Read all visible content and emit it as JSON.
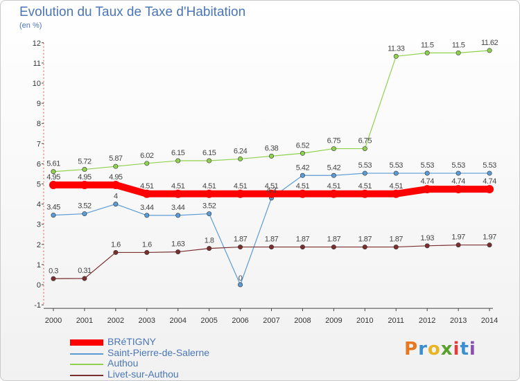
{
  "header": {
    "title": "Evolution du Taux de Taxe d'Habitation",
    "subtitle": "(en %)"
  },
  "logo": {
    "text": "Proxiti",
    "colors": [
      "#e87722",
      "#3a8fd0",
      "#e8b422",
      "#5aa02c",
      "#e03c3c",
      "#3a8fd0",
      "#8a4fb5"
    ]
  },
  "chart_data": {
    "type": "line",
    "x": [
      "2000",
      "2001",
      "2002",
      "2003",
      "2004",
      "2005",
      "2006",
      "2007",
      "2008",
      "2009",
      "2010",
      "2011",
      "2012",
      "2013",
      "2014"
    ],
    "ylim": [
      -1,
      12
    ],
    "yticks": [
      -1,
      0,
      1,
      2,
      3,
      4,
      5,
      6,
      7,
      8,
      9,
      10,
      11,
      12
    ],
    "grid": false,
    "legend_position": "bottom-left",
    "series": [
      {
        "name": "BRéTIGNY",
        "color": "#ff0000",
        "values": [
          4.95,
          4.95,
          4.95,
          4.51,
          4.51,
          4.51,
          4.51,
          4.51,
          4.51,
          4.51,
          4.51,
          4.51,
          4.74,
          4.74,
          4.74
        ],
        "labels": [
          "4.95",
          "4.95",
          "4.95",
          "4.51",
          "4.51",
          "4.51",
          "4.51",
          "4.51",
          "4.51",
          "4.51",
          "4.51",
          "4.51",
          "4.74",
          "4.74",
          "4.74"
        ]
      },
      {
        "name": "Saint-Pierre-de-Salerne",
        "color": "#5b9bd5",
        "values": [
          3.45,
          3.52,
          4,
          3.44,
          3.44,
          3.52,
          0,
          4.3,
          5.42,
          5.42,
          5.53,
          5.53,
          5.53,
          5.53,
          5.53
        ],
        "labels": [
          "3.45",
          "3.52",
          "4",
          "3.44",
          "3.44",
          "3.52",
          "0",
          "4.3",
          "5.42",
          "5.42",
          "5.53",
          "5.53",
          "5.53",
          "5.53",
          "5.53"
        ]
      },
      {
        "name": "Authou",
        "color": "#8fd14f",
        "values": [
          5.61,
          5.72,
          5.87,
          6.02,
          6.15,
          6.15,
          6.24,
          6.38,
          6.52,
          6.75,
          6.75,
          11.33,
          11.5,
          11.5,
          11.62
        ],
        "labels": [
          "5.61",
          "5.72",
          "5.87",
          "6.02",
          "6.15",
          "6.15",
          "6.24",
          "6.38",
          "6.52",
          "6.75",
          "6.75",
          "11.33",
          "11.5",
          "11.5",
          "11.62"
        ]
      },
      {
        "name": "Livet-sur-Authou",
        "color": "#7a2e2e",
        "values": [
          0.3,
          0.31,
          1.6,
          1.6,
          1.63,
          1.8,
          1.87,
          1.87,
          1.87,
          1.87,
          1.87,
          1.87,
          1.93,
          1.97,
          1.97
        ],
        "labels": [
          "0.3",
          "0.31",
          "1.6",
          "1.6",
          "1.63",
          "1.8",
          "1.87",
          "1.87",
          "1.87",
          "1.87",
          "1.87",
          "1.87",
          "1.93",
          "1.97",
          "1.97"
        ]
      }
    ]
  }
}
